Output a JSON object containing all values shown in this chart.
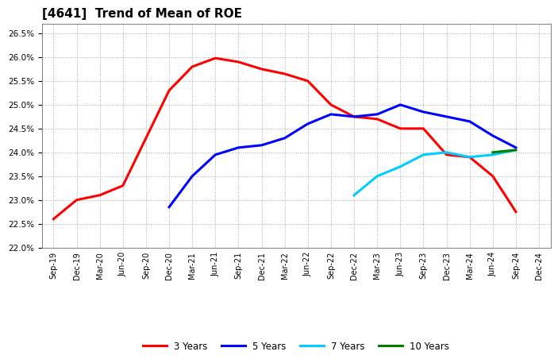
{
  "title": "[4641]  Trend of Mean of ROE",
  "ylim": [
    0.22,
    0.267
  ],
  "yticks": [
    0.22,
    0.225,
    0.23,
    0.235,
    0.24,
    0.245,
    0.25,
    0.255,
    0.26,
    0.265
  ],
  "background_color": "#ffffff",
  "plot_bg_color": "#ffffff",
  "grid_color": "#aaaaaa",
  "series": {
    "3 Years": {
      "color": "#ff0000",
      "x": [
        "Sep-19",
        "Dec-19",
        "Mar-20",
        "Jun-20",
        "Sep-20",
        "Dec-20",
        "Mar-21",
        "Jun-21",
        "Sep-21",
        "Dec-21",
        "Mar-22",
        "Jun-22",
        "Sep-22",
        "Dec-22",
        "Mar-23",
        "Jun-23",
        "Sep-23",
        "Dec-23",
        "Mar-24",
        "Jun-24",
        "Sep-24"
      ],
      "y": [
        0.226,
        0.23,
        0.231,
        0.233,
        0.243,
        0.253,
        0.258,
        0.2598,
        0.259,
        0.2575,
        0.2565,
        0.255,
        0.25,
        0.2475,
        0.247,
        0.245,
        0.245,
        0.2395,
        0.239,
        0.235,
        0.2275
      ]
    },
    "5 Years": {
      "color": "#0000ff",
      "x": [
        "Dec-20",
        "Mar-21",
        "Jun-21",
        "Sep-21",
        "Dec-21",
        "Mar-22",
        "Jun-22",
        "Sep-22",
        "Dec-22",
        "Mar-23",
        "Jun-23",
        "Sep-23",
        "Dec-23",
        "Mar-24",
        "Jun-24",
        "Sep-24"
      ],
      "y": [
        0.2285,
        0.235,
        0.2395,
        0.241,
        0.2415,
        0.243,
        0.246,
        0.248,
        0.2475,
        0.248,
        0.25,
        0.2485,
        0.2475,
        0.2465,
        0.2435,
        0.241
      ]
    },
    "7 Years": {
      "color": "#00ccff",
      "x": [
        "Dec-22",
        "Mar-23",
        "Jun-23",
        "Sep-23",
        "Dec-23",
        "Mar-24",
        "Jun-24",
        "Sep-24"
      ],
      "y": [
        0.231,
        0.235,
        0.237,
        0.2395,
        0.24,
        0.239,
        0.2395,
        0.2405
      ]
    },
    "10 Years": {
      "color": "#008000",
      "x": [
        "Jun-24",
        "Sep-24"
      ],
      "y": [
        0.24,
        0.2405
      ]
    }
  },
  "x_labels": [
    "Sep-19",
    "Dec-19",
    "Mar-20",
    "Jun-20",
    "Sep-20",
    "Dec-20",
    "Mar-21",
    "Jun-21",
    "Sep-21",
    "Dec-21",
    "Mar-22",
    "Jun-22",
    "Sep-22",
    "Dec-22",
    "Mar-23",
    "Jun-23",
    "Sep-23",
    "Dec-23",
    "Mar-24",
    "Jun-24",
    "Sep-24",
    "Dec-24"
  ],
  "legend_entries": [
    "3 Years",
    "5 Years",
    "7 Years",
    "10 Years"
  ],
  "legend_colors": [
    "#ff0000",
    "#0000ff",
    "#00ccff",
    "#008000"
  ],
  "title_fontsize": 11,
  "tick_fontsize": 7,
  "ytick_fontsize": 7.5,
  "linewidth": 2.2
}
